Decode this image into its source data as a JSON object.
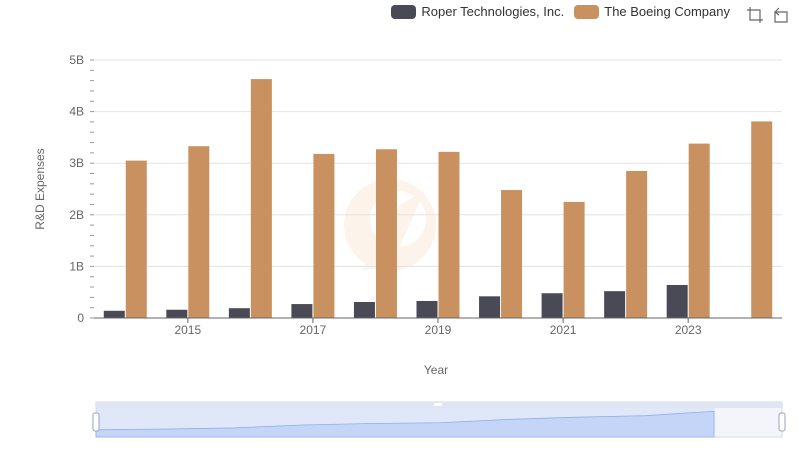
{
  "legend": {
    "items": [
      {
        "name": "Roper Technologies, Inc.",
        "color": "#4a4a56"
      },
      {
        "name": "The Boeing Company",
        "color": "#c8915f"
      }
    ]
  },
  "toolbox": {
    "zoom_icon": "zoom-icon",
    "restore_icon": "restore-icon"
  },
  "chart_data": {
    "type": "bar",
    "xlabel": "Year",
    "ylabel": "R&D Expenses",
    "ylim": [
      0,
      5000000000
    ],
    "y_ticks": [
      {
        "value": 0,
        "label": "0"
      },
      {
        "value": 1000000000,
        "label": "1B"
      },
      {
        "value": 2000000000,
        "label": "2B"
      },
      {
        "value": 3000000000,
        "label": "3B"
      },
      {
        "value": 4000000000,
        "label": "4B"
      },
      {
        "value": 5000000000,
        "label": "5B"
      }
    ],
    "categories": [
      "2014",
      "2015",
      "2016",
      "2017",
      "2018",
      "2019",
      "2020",
      "2021",
      "2022",
      "2023",
      "2024"
    ],
    "x_tick_labels": [
      "2015",
      "2017",
      "2019",
      "2021",
      "2023"
    ],
    "series": [
      {
        "name": "Roper Technologies, Inc.",
        "color": "#4a4a56",
        "values": [
          140000000,
          160000000,
          190000000,
          270000000,
          310000000,
          330000000,
          420000000,
          480000000,
          520000000,
          640000000,
          null
        ]
      },
      {
        "name": "The Boeing Company",
        "color": "#c8915f",
        "values": [
          3050000000,
          3330000000,
          4630000000,
          3180000000,
          3270000000,
          3220000000,
          2480000000,
          2250000000,
          2850000000,
          3380000000,
          3810000000
        ]
      }
    ],
    "grid": true,
    "legend_position": "top-right"
  }
}
